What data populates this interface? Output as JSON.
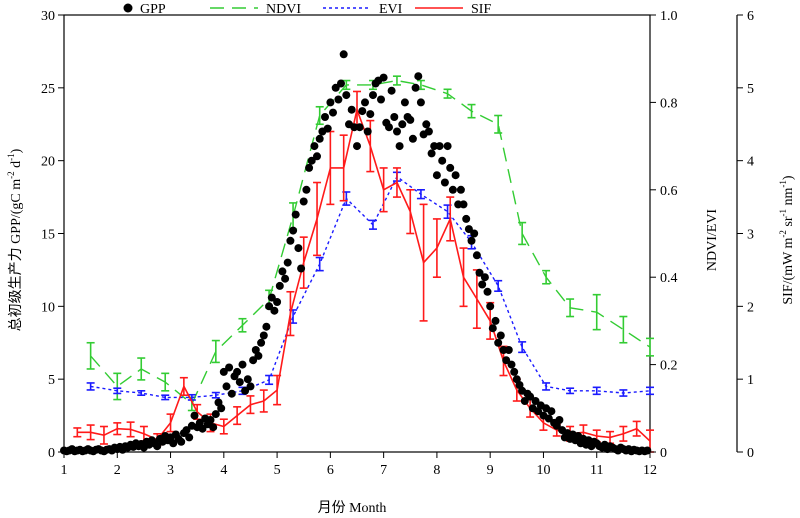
{
  "chart_data": {
    "type": "scatter+line",
    "x_axis": {
      "label": "月份 Month",
      "range": [
        1,
        12
      ],
      "ticks": [
        1,
        2,
        3,
        4,
        5,
        6,
        7,
        8,
        9,
        10,
        11,
        12
      ]
    },
    "y_axes": [
      {
        "id": "gpp",
        "side": "left",
        "label_cn": "总初级生产力 GPP/(gC m",
        "label_sup1": "-2",
        "label_mid": " d",
        "label_sup2": "-1",
        "label_end": ")",
        "range": [
          0,
          30
        ],
        "ticks": [
          0,
          5,
          10,
          15,
          20,
          25,
          30
        ]
      },
      {
        "id": "vi",
        "side": "right",
        "label": "NDVI/EVI",
        "range": [
          0,
          1.0
        ],
        "ticks": [
          "0",
          "0.2",
          "0.4",
          "0.6",
          "0.8",
          "1.0"
        ]
      },
      {
        "id": "sif",
        "side": "far-right",
        "label_pre": "SIF/(mW m",
        "label_sup1": "-2",
        "label_mid": " sr",
        "label_sup2": "-1",
        "label_mid2": " nm",
        "label_sup3": "-1",
        "label_end": ")",
        "range": [
          0,
          6
        ],
        "ticks": [
          0,
          1,
          2,
          3,
          4,
          5,
          6
        ]
      }
    ],
    "legend": [
      {
        "name": "GPP",
        "color": "#000000",
        "style": "dot"
      },
      {
        "name": "NDVI",
        "color": "#33cc33",
        "style": "long-dash"
      },
      {
        "name": "EVI",
        "color": "#1a1aff",
        "style": "short-dash"
      },
      {
        "name": "SIF",
        "color": "#ff1a1a",
        "style": "solid"
      }
    ],
    "series": [
      {
        "name": "NDVI",
        "axis": "vi",
        "color": "#33cc33",
        "x": [
          1.5,
          2.0,
          2.45,
          2.9,
          3.4,
          3.85,
          4.35,
          4.85,
          5.3,
          5.8,
          6.3,
          6.8,
          7.25,
          7.7,
          8.2,
          8.65,
          9.15,
          9.6,
          10.05,
          10.5,
          11.0,
          11.5,
          12.0
        ],
        "y": [
          0.22,
          0.15,
          0.19,
          0.16,
          0.11,
          0.23,
          0.29,
          0.35,
          0.54,
          0.77,
          0.84,
          0.84,
          0.85,
          0.84,
          0.82,
          0.78,
          0.75,
          0.5,
          0.4,
          0.33,
          0.32,
          0.28,
          0.24
        ],
        "err": [
          0.03,
          0.03,
          0.025,
          0.02,
          0.015,
          0.025,
          0.015,
          0.02,
          0.03,
          0.02,
          0.01,
          0.01,
          0.01,
          0.01,
          0.01,
          0.015,
          0.02,
          0.025,
          0.015,
          0.02,
          0.04,
          0.03,
          0.02
        ]
      },
      {
        "name": "EVI",
        "axis": "vi",
        "color": "#1a1aff",
        "x": [
          1.5,
          2.0,
          2.45,
          2.9,
          3.4,
          3.85,
          4.35,
          4.85,
          5.3,
          5.8,
          6.3,
          6.8,
          7.25,
          7.7,
          8.2,
          8.65,
          9.15,
          9.6,
          10.05,
          10.5,
          11.0,
          11.5,
          12.0
        ],
        "y": [
          0.15,
          0.14,
          0.135,
          0.125,
          0.125,
          0.13,
          0.14,
          0.165,
          0.31,
          0.43,
          0.58,
          0.52,
          0.63,
          0.59,
          0.55,
          0.48,
          0.38,
          0.24,
          0.15,
          0.14,
          0.14,
          0.135,
          0.14
        ],
        "err": [
          0.008,
          0.006,
          0.005,
          0.005,
          0.006,
          0.006,
          0.008,
          0.01,
          0.015,
          0.015,
          0.015,
          0.01,
          0.01,
          0.01,
          0.015,
          0.015,
          0.012,
          0.012,
          0.008,
          0.006,
          0.008,
          0.007,
          0.008
        ]
      },
      {
        "name": "SIF",
        "axis": "sif",
        "color": "#ff1a1a",
        "x": [
          1.25,
          1.5,
          1.75,
          2.0,
          2.25,
          2.5,
          2.75,
          3.0,
          3.25,
          3.5,
          3.75,
          4.0,
          4.25,
          4.5,
          4.75,
          5.0,
          5.25,
          5.5,
          5.75,
          6.0,
          6.25,
          6.5,
          6.75,
          7.0,
          7.25,
          7.5,
          7.75,
          8.0,
          8.25,
          8.5,
          8.75,
          9.0,
          9.25,
          9.5,
          9.75,
          10.0,
          10.25,
          10.5,
          10.75,
          11.0,
          11.25,
          11.5,
          11.75,
          12.0
        ],
        "y": [
          0.27,
          0.27,
          0.23,
          0.32,
          0.31,
          0.25,
          0.17,
          0.4,
          0.9,
          0.55,
          0.4,
          0.35,
          0.5,
          0.65,
          0.7,
          0.85,
          1.9,
          2.6,
          3.2,
          3.9,
          3.9,
          4.7,
          4.2,
          3.6,
          3.7,
          3.3,
          2.6,
          2.8,
          3.2,
          2.4,
          2.1,
          1.8,
          1.25,
          0.85,
          0.6,
          0.4,
          0.3,
          0.25,
          0.27,
          0.22,
          0.2,
          0.25,
          0.32,
          0.15
        ],
        "err": [
          0.06,
          0.1,
          0.12,
          0.08,
          0.1,
          0.1,
          0.08,
          0.12,
          0.12,
          0.1,
          0.12,
          0.1,
          0.12,
          0.12,
          0.15,
          0.2,
          0.3,
          0.35,
          0.5,
          0.5,
          0.45,
          0.25,
          0.35,
          0.3,
          0.2,
          0.3,
          0.8,
          0.4,
          0.3,
          0.4,
          0.4,
          0.25,
          0.2,
          0.15,
          0.12,
          0.1,
          0.08,
          0.1,
          0.1,
          0.08,
          0.08,
          0.1,
          0.1,
          0.15
        ]
      },
      {
        "name": "GPP",
        "axis": "gpp",
        "color": "#000000",
        "points": [
          [
            1.0,
            0.1
          ],
          [
            1.05,
            0.05
          ],
          [
            1.1,
            0.1
          ],
          [
            1.15,
            0.2
          ],
          [
            1.2,
            0.05
          ],
          [
            1.25,
            0.1
          ],
          [
            1.3,
            0.15
          ],
          [
            1.35,
            0.05
          ],
          [
            1.4,
            0.1
          ],
          [
            1.45,
            0.2
          ],
          [
            1.5,
            0.1
          ],
          [
            1.55,
            0.05
          ],
          [
            1.6,
            0.15
          ],
          [
            1.65,
            0.2
          ],
          [
            1.7,
            0.1
          ],
          [
            1.75,
            0.05
          ],
          [
            1.8,
            0.15
          ],
          [
            1.85,
            0.2
          ],
          [
            1.9,
            0.1
          ],
          [
            1.95,
            0.3
          ],
          [
            2.0,
            0.2
          ],
          [
            2.05,
            0.35
          ],
          [
            2.1,
            0.15
          ],
          [
            2.15,
            0.4
          ],
          [
            2.2,
            0.3
          ],
          [
            2.25,
            0.5
          ],
          [
            2.3,
            0.35
          ],
          [
            2.35,
            0.6
          ],
          [
            2.4,
            0.4
          ],
          [
            2.45,
            0.55
          ],
          [
            2.5,
            0.3
          ],
          [
            2.55,
            0.7
          ],
          [
            2.6,
            0.5
          ],
          [
            2.65,
            0.8
          ],
          [
            2.7,
            0.6
          ],
          [
            2.75,
            0.4
          ],
          [
            2.8,
            0.9
          ],
          [
            2.85,
            0.7
          ],
          [
            2.9,
            1.1
          ],
          [
            2.95,
            0.8
          ],
          [
            3.0,
            1.0
          ],
          [
            3.05,
            0.6
          ],
          [
            3.1,
            1.2
          ],
          [
            3.15,
            0.9
          ],
          [
            3.2,
            0.7
          ],
          [
            3.25,
            1.3
          ],
          [
            3.3,
            1.5
          ],
          [
            3.35,
            1.0
          ],
          [
            3.4,
            1.8
          ],
          [
            3.45,
            2.5
          ],
          [
            3.5,
            1.7
          ],
          [
            3.55,
            2.0
          ],
          [
            3.6,
            1.6
          ],
          [
            3.65,
            2.3
          ],
          [
            3.7,
            1.9
          ],
          [
            3.75,
            2.2
          ],
          [
            3.8,
            1.7
          ],
          [
            3.85,
            2.6
          ],
          [
            3.9,
            3.4
          ],
          [
            3.95,
            3.0
          ],
          [
            4.0,
            5.5
          ],
          [
            4.05,
            4.5
          ],
          [
            4.1,
            5.8
          ],
          [
            4.15,
            4.0
          ],
          [
            4.2,
            5.2
          ],
          [
            4.25,
            5.5
          ],
          [
            4.3,
            4.8
          ],
          [
            4.35,
            6.0
          ],
          [
            4.4,
            4.2
          ],
          [
            4.45,
            5.0
          ],
          [
            4.5,
            4.5
          ],
          [
            4.55,
            6.3
          ],
          [
            4.6,
            7.0
          ],
          [
            4.65,
            6.6
          ],
          [
            4.7,
            7.5
          ],
          [
            4.75,
            8.0
          ],
          [
            4.8,
            8.6
          ],
          [
            4.85,
            10.0
          ],
          [
            4.9,
            10.6
          ],
          [
            4.95,
            9.7
          ],
          [
            5.0,
            10.3
          ],
          [
            5.05,
            11.4
          ],
          [
            5.1,
            12.4
          ],
          [
            5.15,
            11.9
          ],
          [
            5.2,
            13.0
          ],
          [
            5.25,
            14.5
          ],
          [
            5.3,
            15.2
          ],
          [
            5.35,
            16.3
          ],
          [
            5.4,
            14.0
          ],
          [
            5.45,
            12.6
          ],
          [
            5.5,
            17.2
          ],
          [
            5.55,
            18.0
          ],
          [
            5.6,
            19.5
          ],
          [
            5.65,
            20.0
          ],
          [
            5.7,
            21.0
          ],
          [
            5.75,
            20.3
          ],
          [
            5.8,
            21.5
          ],
          [
            5.85,
            22.0
          ],
          [
            5.9,
            23.0
          ],
          [
            5.95,
            22.2
          ],
          [
            6.0,
            24.0
          ],
          [
            6.05,
            23.3
          ],
          [
            6.1,
            25.0
          ],
          [
            6.15,
            24.2
          ],
          [
            6.2,
            25.3
          ],
          [
            6.25,
            27.3
          ],
          [
            6.3,
            24.5
          ],
          [
            6.35,
            22.5
          ],
          [
            6.4,
            23.5
          ],
          [
            6.45,
            22.3
          ],
          [
            6.5,
            21.0
          ],
          [
            6.55,
            22.3
          ],
          [
            6.6,
            23.4
          ],
          [
            6.65,
            24.0
          ],
          [
            6.7,
            22.0
          ],
          [
            6.75,
            23.2
          ],
          [
            6.8,
            24.5
          ],
          [
            6.85,
            25.3
          ],
          [
            6.9,
            25.5
          ],
          [
            6.95,
            24.2
          ],
          [
            7.0,
            25.7
          ],
          [
            7.05,
            22.6
          ],
          [
            7.1,
            22.3
          ],
          [
            7.15,
            24.8
          ],
          [
            7.2,
            23.0
          ],
          [
            7.25,
            22.0
          ],
          [
            7.3,
            21.0
          ],
          [
            7.35,
            22.5
          ],
          [
            7.4,
            24.0
          ],
          [
            7.45,
            23.0
          ],
          [
            7.5,
            22.8
          ],
          [
            7.55,
            21.5
          ],
          [
            7.6,
            25.0
          ],
          [
            7.65,
            25.8
          ],
          [
            7.7,
            24.0
          ],
          [
            7.75,
            21.8
          ],
          [
            7.8,
            22.5
          ],
          [
            7.85,
            22.0
          ],
          [
            7.9,
            20.5
          ],
          [
            7.95,
            21.0
          ],
          [
            8.0,
            19.0
          ],
          [
            8.05,
            21.0
          ],
          [
            8.1,
            20.0
          ],
          [
            8.15,
            18.5
          ],
          [
            8.2,
            21.0
          ],
          [
            8.25,
            19.5
          ],
          [
            8.3,
            18.0
          ],
          [
            8.35,
            19.0
          ],
          [
            8.4,
            17.0
          ],
          [
            8.45,
            18.0
          ],
          [
            8.5,
            17.0
          ],
          [
            8.55,
            16.0
          ],
          [
            8.6,
            15.3
          ],
          [
            8.65,
            14.5
          ],
          [
            8.7,
            15.0
          ],
          [
            8.75,
            13.5
          ],
          [
            8.8,
            12.3
          ],
          [
            8.85,
            11.5
          ],
          [
            8.9,
            12.0
          ],
          [
            8.95,
            11.0
          ],
          [
            9.0,
            10.0
          ],
          [
            9.05,
            8.5
          ],
          [
            9.1,
            9.0
          ],
          [
            9.15,
            7.5
          ],
          [
            9.2,
            8.0
          ],
          [
            9.25,
            7.0
          ],
          [
            9.3,
            6.3
          ],
          [
            9.35,
            7.0
          ],
          [
            9.4,
            6.0
          ],
          [
            9.45,
            5.5
          ],
          [
            9.5,
            5.0
          ],
          [
            9.55,
            4.6
          ],
          [
            9.6,
            4.2
          ],
          [
            9.65,
            3.5
          ],
          [
            9.7,
            4.0
          ],
          [
            9.75,
            3.8
          ],
          [
            9.8,
            3.0
          ],
          [
            9.85,
            3.5
          ],
          [
            9.9,
            2.8
          ],
          [
            9.95,
            3.2
          ],
          [
            10.0,
            2.5
          ],
          [
            10.05,
            3.0
          ],
          [
            10.1,
            2.3
          ],
          [
            10.15,
            2.8
          ],
          [
            10.2,
            2.0
          ],
          [
            10.25,
            1.8
          ],
          [
            10.3,
            2.2
          ],
          [
            10.35,
            1.5
          ],
          [
            10.4,
            1.0
          ],
          [
            10.45,
            1.3
          ],
          [
            10.5,
            0.9
          ],
          [
            10.55,
            1.2
          ],
          [
            10.6,
            0.8
          ],
          [
            10.65,
            1.1
          ],
          [
            10.7,
            0.6
          ],
          [
            10.75,
            0.9
          ],
          [
            10.8,
            0.5
          ],
          [
            10.85,
            0.8
          ],
          [
            10.9,
            0.4
          ],
          [
            10.95,
            0.7
          ],
          [
            11.0,
            0.6
          ],
          [
            11.05,
            0.4
          ],
          [
            11.1,
            0.3
          ],
          [
            11.15,
            0.5
          ],
          [
            11.2,
            0.2
          ],
          [
            11.25,
            0.4
          ],
          [
            11.3,
            0.3
          ],
          [
            11.35,
            0.2
          ],
          [
            11.4,
            0.1
          ],
          [
            11.45,
            0.3
          ],
          [
            11.5,
            0.2
          ],
          [
            11.55,
            0.1
          ],
          [
            11.6,
            0.2
          ],
          [
            11.65,
            0.05
          ],
          [
            11.7,
            0.15
          ],
          [
            11.75,
            0.1
          ],
          [
            11.8,
            0.05
          ],
          [
            11.85,
            0.1
          ],
          [
            11.9,
            0.05
          ],
          [
            11.95,
            0.1
          ]
        ]
      }
    ]
  }
}
